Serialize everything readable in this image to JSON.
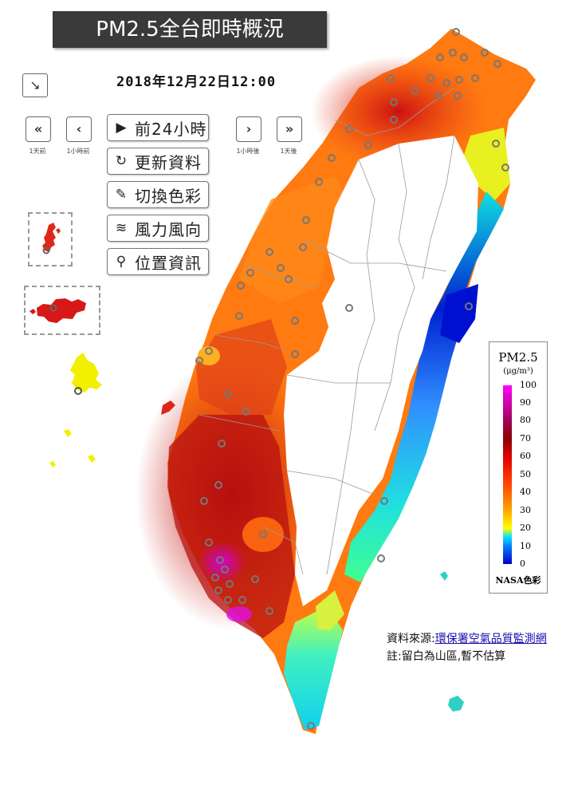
{
  "title": "PM2.5全台即時概況",
  "timestamp": "2018年12月22日12:00",
  "nav": {
    "day_back": {
      "glyph": "«",
      "label": "1天前"
    },
    "hour_back": {
      "glyph": "‹",
      "label": "1小時前"
    },
    "hour_fwd": {
      "glyph": "›",
      "label": "1小時後"
    },
    "day_fwd": {
      "glyph": "»",
      "label": "1天後"
    }
  },
  "corner_button": {
    "glyph": "↘",
    "icon": "arrow-down-right-icon"
  },
  "menu": [
    {
      "icon": "play-circle-icon",
      "glyph": "▶",
      "label": "前24小時"
    },
    {
      "icon": "refresh-icon",
      "glyph": "↻",
      "label": "更新資料"
    },
    {
      "icon": "paint-brush-icon",
      "glyph": "✎",
      "label": "切換色彩"
    },
    {
      "icon": "wind-icon",
      "glyph": "≋",
      "label": "風力風向"
    },
    {
      "icon": "map-pin-icon",
      "glyph": "⚲",
      "label": "位置資訊"
    }
  ],
  "legend": {
    "title": "PM2.5",
    "unit": "(μg/m³)",
    "ticks": [
      "100",
      "90",
      "80",
      "70",
      "60",
      "50",
      "40",
      "30",
      "20",
      "10",
      "0"
    ],
    "footer": "NASA色彩",
    "colors": {
      "low": "#0000c8",
      "mid": "#ffff00",
      "high": "#8b0000",
      "max": "#ff00ff"
    }
  },
  "source": {
    "prefix": "資料來源:",
    "link": "環保署空氣品質監測網"
  },
  "note": "註:留白為山區,暫不估算"
}
